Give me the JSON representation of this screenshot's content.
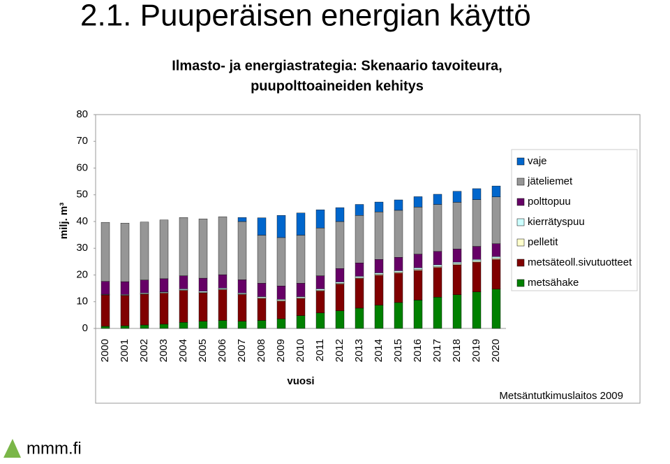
{
  "header": {
    "title": "2.1. Puuperäisen energian käyttö"
  },
  "chart_data": {
    "type": "stacked_bar",
    "title": [
      "Ilmasto- ja energiastrategia: Skenaario tavoiteura,",
      "puupolttoaineiden kehitys"
    ],
    "y_label": "milj. m³",
    "x_label": "vuosi",
    "categories": [
      "2000",
      "2001",
      "2002",
      "2003",
      "2004",
      "2005",
      "2006",
      "2007",
      "2008",
      "2009",
      "2010",
      "2011",
      "2012",
      "2013",
      "2014",
      "2015",
      "2016",
      "2017",
      "2018",
      "2019",
      "2020"
    ],
    "series": [
      {
        "name": "metsähake",
        "color": "#008000",
        "values": [
          0.8,
          1.0,
          1.3,
          1.6,
          2.3,
          2.7,
          3.0,
          2.7,
          3.0,
          3.6,
          4.8,
          5.8,
          6.6,
          7.6,
          8.7,
          9.7,
          10.6,
          11.7,
          12.6,
          13.7,
          14.7
        ]
      },
      {
        "name": "metsäteoll.sivutuotteet",
        "color": "#800000",
        "values": [
          11.7,
          11.3,
          11.5,
          11.6,
          11.9,
          10.6,
          11.5,
          10.0,
          8.2,
          6.6,
          6.4,
          8.2,
          10.0,
          11.1,
          11.2,
          11.0,
          11.1,
          11.1,
          11.2,
          11.1,
          11.1
        ]
      },
      {
        "name": "pelletit",
        "color": "#ffffcc",
        "values": [
          0.1,
          0.2,
          0.2,
          0.2,
          0.2,
          0.2,
          0.2,
          0.2,
          0.3,
          0.3,
          0.3,
          0.3,
          0.3,
          0.3,
          0.4,
          0.4,
          0.4,
          0.4,
          0.4,
          0.4,
          0.5
        ]
      },
      {
        "name": "kierrätyspuu",
        "color": "#ccffff",
        "values": [
          0.2,
          0.2,
          0.3,
          0.3,
          0.4,
          0.4,
          0.4,
          0.4,
          0.4,
          0.4,
          0.4,
          0.5,
          0.5,
          0.5,
          0.5,
          0.5,
          0.6,
          0.6,
          0.6,
          0.6,
          0.6
        ]
      },
      {
        "name": "polttopuu",
        "color": "#660066",
        "values": [
          4.8,
          4.8,
          4.8,
          4.9,
          4.9,
          4.9,
          5.0,
          4.9,
          5.0,
          5.0,
          5.0,
          4.9,
          5.0,
          5.0,
          5.0,
          5.0,
          5.1,
          5.0,
          4.9,
          4.9,
          4.8
        ]
      },
      {
        "name": "jäteliemet",
        "color": "#969696",
        "values": [
          22.1,
          21.9,
          21.7,
          22.0,
          21.8,
          22.2,
          21.7,
          21.8,
          18.0,
          18.1,
          18.0,
          17.9,
          17.6,
          17.8,
          17.8,
          17.6,
          17.6,
          17.6,
          17.5,
          17.5,
          17.5
        ]
      },
      {
        "name": "vaje",
        "color": "#0066cc",
        "values": [
          0,
          0,
          0,
          0,
          0,
          0,
          0,
          1.5,
          6.5,
          8.3,
          8.3,
          6.8,
          5.2,
          4.1,
          3.7,
          3.9,
          3.9,
          3.8,
          4.1,
          4.1,
          4.1
        ]
      }
    ],
    "ylim": [
      0,
      80
    ],
    "yticks": [
      0,
      10,
      20,
      30,
      40,
      50,
      60,
      70,
      80
    ],
    "legend": "right",
    "source": "Metsäntutkimuslaitos 2009"
  },
  "footer": {
    "logo": "mmm.fi"
  }
}
